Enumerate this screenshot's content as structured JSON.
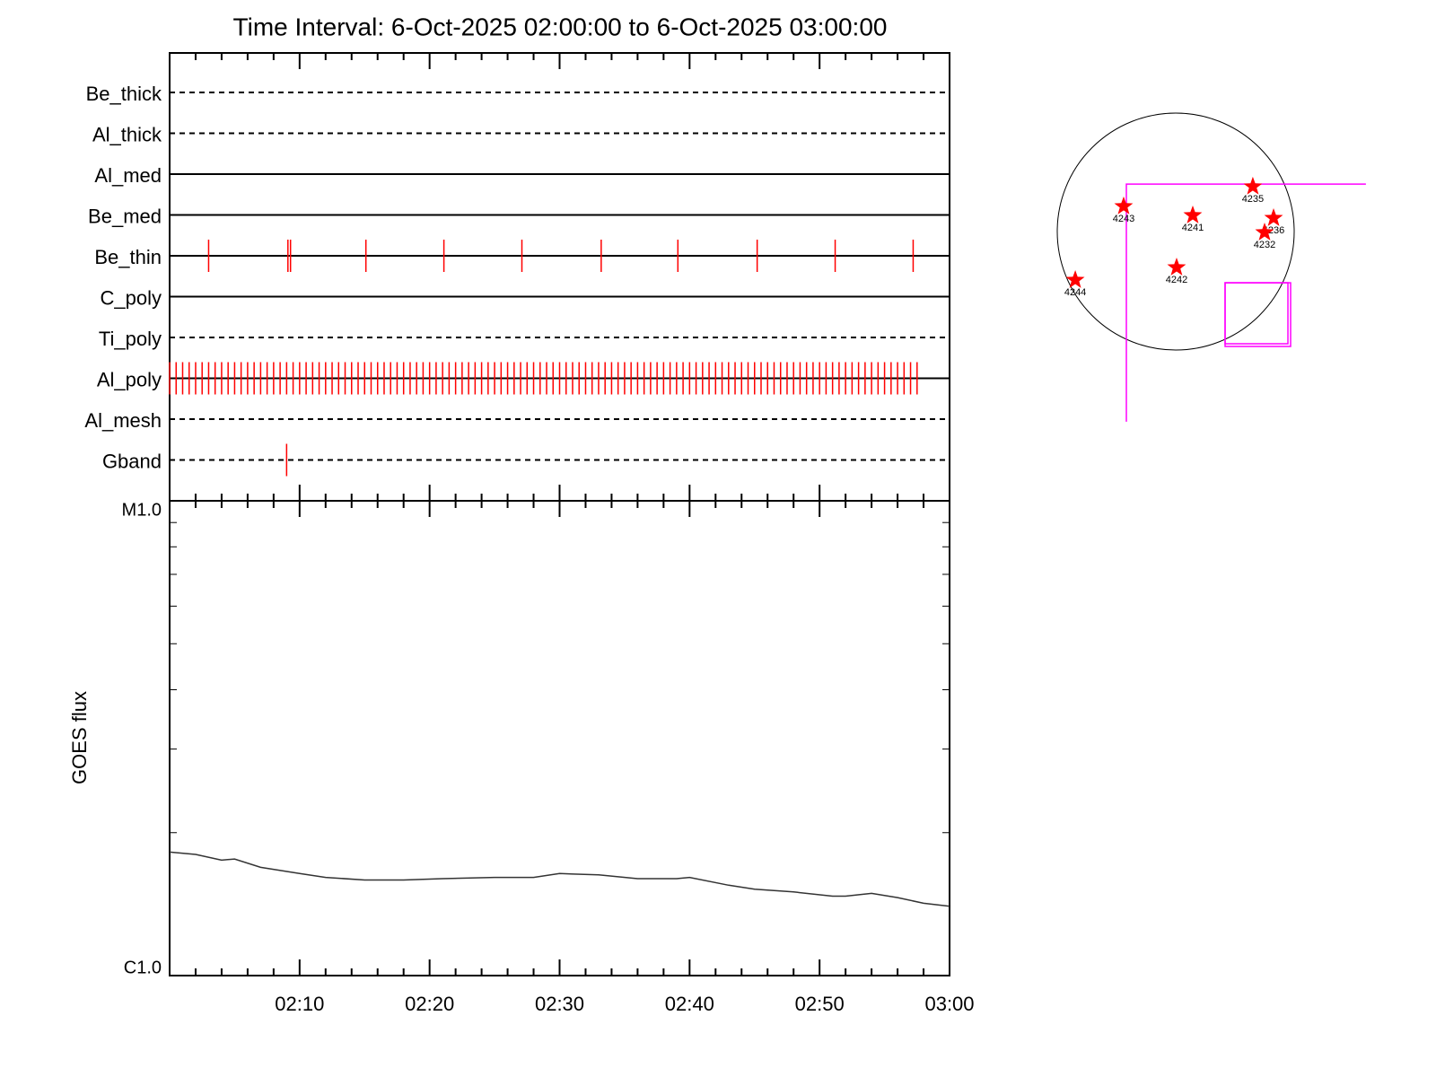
{
  "chart_data": [
    {
      "type": "event",
      "title": "Time Interval:  6-Oct-2025 02:00:00 to  6-Oct-2025 03:00:00",
      "xlim": [
        0,
        60
      ],
      "color": "#ff0000",
      "rows": [
        {
          "name": "Be_thick",
          "style": "dashed",
          "events": []
        },
        {
          "name": "Al_thick",
          "style": "dashed",
          "events": []
        },
        {
          "name": "Al_med",
          "style": "solid",
          "events": []
        },
        {
          "name": "Be_med",
          "style": "solid",
          "events": []
        },
        {
          "name": "Be_thin",
          "style": "solid",
          "events": [
            3.0,
            9.1,
            9.3,
            15.1,
            21.1,
            27.1,
            33.2,
            39.1,
            45.2,
            51.2,
            57.2
          ]
        },
        {
          "name": "C_poly",
          "style": "solid",
          "events": []
        },
        {
          "name": "Ti_poly",
          "style": "dashed",
          "events": []
        },
        {
          "name": "Al_poly",
          "style": "solid",
          "events": [
            0,
            0.5,
            1,
            1.5,
            2,
            2.5,
            3,
            3.5,
            4,
            4.5,
            5,
            5.5,
            6,
            6.5,
            7,
            7.5,
            8,
            8.5,
            9,
            9.5,
            10,
            10.5,
            11,
            11.5,
            12,
            12.5,
            13,
            13.5,
            14,
            14.5,
            15,
            15.5,
            16,
            16.5,
            17,
            17.5,
            18,
            18.5,
            19,
            19.5,
            20,
            20.5,
            21,
            21.5,
            22,
            22.5,
            23,
            23.5,
            24,
            24.5,
            25,
            25.5,
            26,
            26.5,
            27,
            27.5,
            28,
            28.5,
            29,
            29.5,
            30,
            30.5,
            31,
            31.5,
            32,
            32.5,
            33,
            33.5,
            34,
            34.5,
            35,
            35.5,
            36,
            36.5,
            37,
            37.5,
            38,
            38.5,
            39,
            39.5,
            40,
            40.5,
            41,
            41.5,
            42,
            42.5,
            43,
            43.5,
            44,
            44.5,
            45,
            45.5,
            46,
            46.5,
            47,
            47.5,
            48,
            48.5,
            49,
            49.5,
            50,
            50.5,
            51,
            51.5,
            52,
            52.5,
            53,
            53.5,
            54,
            54.5,
            55,
            55.5,
            56,
            56.5,
            57,
            57.5
          ]
        },
        {
          "name": "Al_mesh",
          "style": "dashed",
          "events": []
        },
        {
          "name": "Gband",
          "style": "dashed",
          "events": [
            9.0
          ]
        }
      ]
    },
    {
      "type": "line",
      "y_label": "GOES flux",
      "log_scale": true,
      "color": "#333333",
      "xlim": [
        0,
        60
      ],
      "ylim": [
        1e-06,
        1e-05
      ],
      "xticks": [
        {
          "value": 10,
          "label": "02:10"
        },
        {
          "value": 20,
          "label": "02:20"
        },
        {
          "value": 30,
          "label": "02:30"
        },
        {
          "value": 40,
          "label": "02:40"
        },
        {
          "value": 50,
          "label": "02:50"
        },
        {
          "value": 60,
          "label": "03:00"
        }
      ],
      "minor_xticks": [
        2,
        4,
        6,
        8,
        12,
        14,
        16,
        18,
        22,
        24,
        26,
        28,
        32,
        34,
        36,
        38,
        42,
        44,
        46,
        48,
        52,
        54,
        56,
        58
      ],
      "yticks": [
        {
          "value": 1e-06,
          "label": "C1.0"
        },
        {
          "value": 1e-05,
          "label": "M1.0"
        }
      ],
      "minor_yticks": [
        2e-06,
        3e-06,
        4e-06,
        5e-06,
        6e-06,
        7e-06,
        8e-06,
        9e-06
      ],
      "x": [
        0,
        2,
        4,
        5,
        7,
        10,
        12,
        15,
        18,
        21,
        25,
        28,
        30,
        33,
        36,
        39,
        40,
        43,
        45,
        48,
        51,
        52,
        54,
        56,
        58,
        60
      ],
      "values": [
        1.82e-06,
        1.8e-06,
        1.75e-06,
        1.76e-06,
        1.69e-06,
        1.64e-06,
        1.61e-06,
        1.59e-06,
        1.59e-06,
        1.6e-06,
        1.61e-06,
        1.61e-06,
        1.64e-06,
        1.63e-06,
        1.6e-06,
        1.6e-06,
        1.61e-06,
        1.55e-06,
        1.52e-06,
        1.5e-06,
        1.47e-06,
        1.47e-06,
        1.49e-06,
        1.46e-06,
        1.42e-06,
        1.4e-06
      ]
    },
    {
      "type": "disk",
      "solar_radius": 960,
      "color": "#ff0000",
      "fov_color": "#ff00ff",
      "points": [
        {
          "label": "4235",
          "x": 625,
          "y": 364
        },
        {
          "label": "4243",
          "x": -422,
          "y": 204
        },
        {
          "label": "4241",
          "x": 138,
          "y": 131
        },
        {
          "label": "4236",
          "x": 793,
          "y": 109
        },
        {
          "label": "4232",
          "x": 720,
          "y": -7
        },
        {
          "label": "4242",
          "x": 7,
          "y": -291
        },
        {
          "label": "4244",
          "x": -814,
          "y": -393
        }
      ],
      "corner": {
        "x": [
          -400,
          1541
        ],
        "y": [
          -1541,
          385
        ]
      },
      "box": {
        "x": [
          400,
          931
        ],
        "y": [
          -931,
          -415
        ]
      }
    }
  ]
}
